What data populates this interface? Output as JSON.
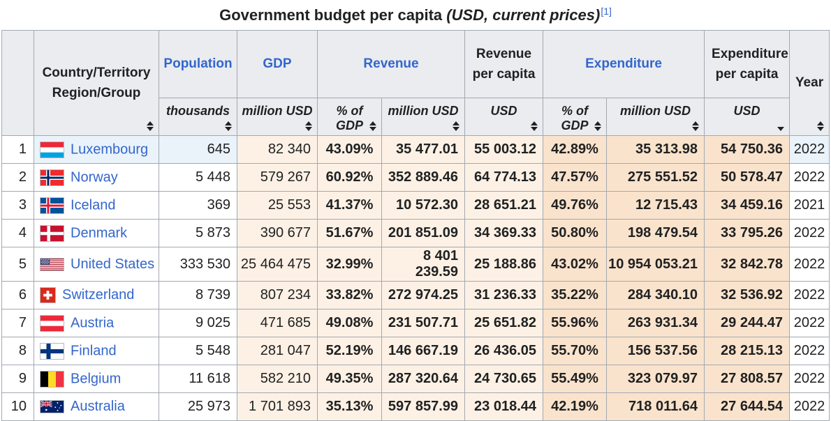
{
  "title": {
    "text": "Government budget per capita",
    "subtitle": "(USD, current prices)",
    "ref": "[1]"
  },
  "colors": {
    "link_blue": "#3366cc",
    "header_bg": "#eaecf0",
    "revenue_group_bg": "#fdf1e5",
    "expenditure_group_bg": "#fae3cc",
    "highlight_row_bg": "#eaf3fa",
    "border": "#a2a9b1"
  },
  "table": {
    "header": {
      "country_line1": "Country/Territory",
      "country_line2": "Region/Group",
      "population": "Population",
      "gdp": "GDP",
      "revenue": "Revenue",
      "revenue_per_capita": "Revenue per capita",
      "expenditure": "Expenditure",
      "expenditure_per_capita": "Expenditure per capita",
      "year": "Year",
      "sub": {
        "thousands": "thousands",
        "million_usd": "million USD",
        "pct_gdp": "% of GDP",
        "usd": "USD"
      }
    },
    "sort_state": {
      "sorted_column": "expenditure_per_capita_usd",
      "direction": "descending"
    },
    "rows": [
      {
        "rank": "1",
        "flag": "lu",
        "country": "Luxembourg",
        "population": "645",
        "gdp": "82 340",
        "rev_pct": "43.09%",
        "rev_musd": "35 477.01",
        "rev_pc": "55 003.12",
        "exp_pct": "42.89%",
        "exp_musd": "35 313.98",
        "exp_pc": "54 750.36",
        "year": "2022",
        "highlighted": true
      },
      {
        "rank": "2",
        "flag": "no",
        "country": "Norway",
        "population": "5 448",
        "gdp": "579 267",
        "rev_pct": "60.92%",
        "rev_musd": "352 889.46",
        "rev_pc": "64 774.13",
        "exp_pct": "47.57%",
        "exp_musd": "275 551.52",
        "exp_pc": "50 578.47",
        "year": "2022",
        "highlighted": false
      },
      {
        "rank": "3",
        "flag": "is",
        "country": "Iceland",
        "population": "369",
        "gdp": "25 553",
        "rev_pct": "41.37%",
        "rev_musd": "10 572.30",
        "rev_pc": "28 651.21",
        "exp_pct": "49.76%",
        "exp_musd": "12 715.43",
        "exp_pc": "34 459.16",
        "year": "2021",
        "highlighted": false
      },
      {
        "rank": "4",
        "flag": "dk",
        "country": "Denmark",
        "population": "5 873",
        "gdp": "390 677",
        "rev_pct": "51.67%",
        "rev_musd": "201 851.09",
        "rev_pc": "34 369.33",
        "exp_pct": "50.80%",
        "exp_musd": "198 479.54",
        "exp_pc": "33 795.26",
        "year": "2022",
        "highlighted": false
      },
      {
        "rank": "5",
        "flag": "us",
        "country": "United States",
        "population": "333 530",
        "gdp": "25 464 475",
        "rev_pct": "32.99%",
        "rev_musd": "8 401 239.59",
        "rev_pc": "25 188.86",
        "exp_pct": "43.02%",
        "exp_musd": "10 954 053.21",
        "exp_pc": "32 842.78",
        "year": "2022",
        "highlighted": false
      },
      {
        "rank": "6",
        "flag": "ch",
        "country": "Switzerland",
        "population": "8 739",
        "gdp": "807 234",
        "rev_pct": "33.82%",
        "rev_musd": "272 974.25",
        "rev_pc": "31 236.33",
        "exp_pct": "35.22%",
        "exp_musd": "284 340.10",
        "exp_pc": "32 536.92",
        "year": "2022",
        "highlighted": false
      },
      {
        "rank": "7",
        "flag": "at",
        "country": "Austria",
        "population": "9 025",
        "gdp": "471 685",
        "rev_pct": "49.08%",
        "rev_musd": "231 507.71",
        "rev_pc": "25 651.82",
        "exp_pct": "55.96%",
        "exp_musd": "263 931.34",
        "exp_pc": "29 244.47",
        "year": "2022",
        "highlighted": false
      },
      {
        "rank": "8",
        "flag": "fi",
        "country": "Finland",
        "population": "5 548",
        "gdp": "281 047",
        "rev_pct": "52.19%",
        "rev_musd": "146 667.19",
        "rev_pc": "26 436.05",
        "exp_pct": "55.70%",
        "exp_musd": "156 537.56",
        "exp_pc": "28 215.13",
        "year": "2022",
        "highlighted": false
      },
      {
        "rank": "9",
        "flag": "be",
        "country": "Belgium",
        "population": "11 618",
        "gdp": "582 210",
        "rev_pct": "49.35%",
        "rev_musd": "287 320.64",
        "rev_pc": "24 730.65",
        "exp_pct": "55.49%",
        "exp_musd": "323 079.97",
        "exp_pc": "27 808.57",
        "year": "2022",
        "highlighted": false
      },
      {
        "rank": "10",
        "flag": "au",
        "country": "Australia",
        "population": "25 973",
        "gdp": "1 701 893",
        "rev_pct": "35.13%",
        "rev_musd": "597 857.99",
        "rev_pc": "23 018.44",
        "exp_pct": "42.19%",
        "exp_musd": "718 011.64",
        "exp_pc": "27 644.54",
        "year": "2022",
        "highlighted": false
      }
    ]
  }
}
